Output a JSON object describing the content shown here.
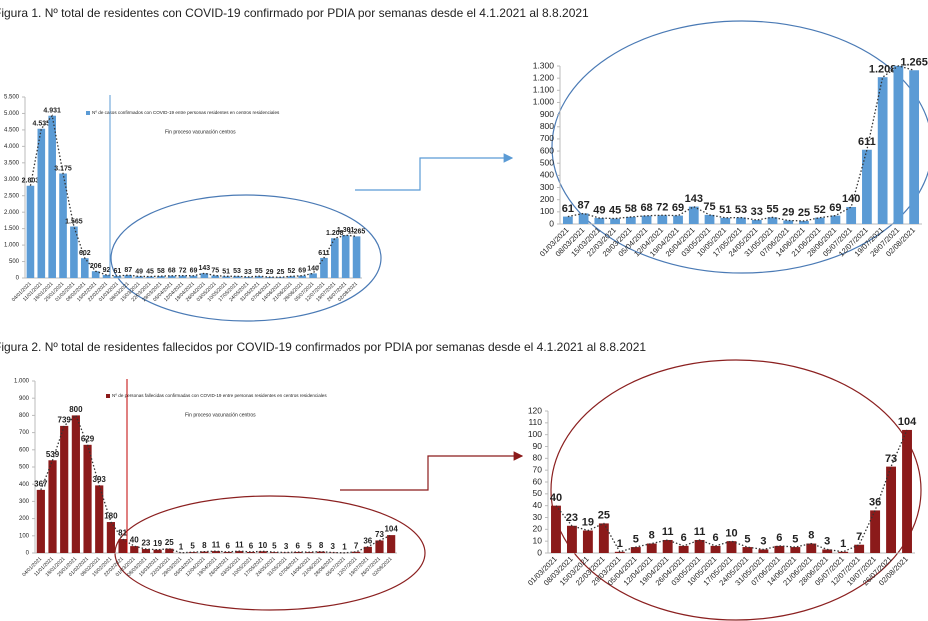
{
  "chart_data": [
    {
      "type": "bar",
      "title": "Figura 1. Nº total de residentes con COVID-19 confirmado por PDIA por semanas desde el 4.1.2021 al 8.8.2021",
      "annotation": "Fin proceso vacunación centros",
      "categories": [
        "04/01/2021",
        "11/01/2021",
        "18/01/2021",
        "25/01/2021",
        "01/02/2021",
        "08/02/2021",
        "15/02/2021",
        "22/02/2021",
        "01/03/2021",
        "08/03/2021",
        "15/03/2021",
        "22/03/2021",
        "29/03/2021",
        "05/04/2021",
        "12/04/2021",
        "19/04/2021",
        "26/04/2021",
        "03/05/2021",
        "10/05/2021",
        "17/05/2021",
        "24/05/2021",
        "31/05/2021",
        "07/06/2021",
        "14/06/2021",
        "21/06/2021",
        "28/06/2021",
        "05/07/2021",
        "12/07/2021",
        "19/07/2021",
        "26/07/2021",
        "02/08/2021"
      ],
      "series": [
        {
          "name": "Nº de casos confirmados con COVID-19 entre personas residentes en centros residenciales",
          "color": "#5b9bd5",
          "values": [
            2803,
            4535,
            4931,
            3175,
            1565,
            602,
            206,
            92,
            61,
            87,
            49,
            45,
            58,
            68,
            72,
            69,
            143,
            75,
            51,
            53,
            33,
            55,
            29,
            25,
            52,
            69,
            140,
            611,
            1208,
            1301,
            1265
          ],
          "value_labels": [
            "2.803",
            "4.535",
            "4.931",
            "3.175",
            "1.565",
            "602",
            "206",
            "92",
            "61",
            "87",
            "49",
            "45",
            "58",
            "68",
            "72",
            "69",
            "143",
            "75",
            "51",
            "53",
            "33",
            "55",
            "29",
            "25",
            "52",
            "69",
            "140",
            "611",
            "1.208",
            "1.301",
            "1.265"
          ]
        }
      ],
      "ylim": [
        0,
        5500
      ],
      "yticks": [
        0,
        500,
        {
          "value": 1000,
          "label": "1.000"
        },
        {
          "value": 1500,
          "label": "1.500"
        },
        {
          "value": 2000,
          "label": "2.000"
        },
        {
          "value": 2500,
          "label": "2.500"
        },
        {
          "value": 3000,
          "label": "3.000"
        },
        {
          "value": 3500,
          "label": "3.500"
        },
        {
          "value": 4000,
          "label": "4.000"
        },
        {
          "value": 4500,
          "label": "4.500"
        },
        {
          "value": 5000,
          "label": "5.000"
        },
        {
          "value": 5500,
          "label": "5.500"
        }
      ]
    },
    {
      "type": "bar",
      "categories": [
        "01/03/2021",
        "08/03/2021",
        "15/03/2021",
        "22/03/2021",
        "29/03/2021",
        "05/04/2021",
        "12/04/2021",
        "19/04/2021",
        "26/04/2021",
        "03/05/2021",
        "10/05/2021",
        "17/05/2021",
        "24/05/2021",
        "31/05/2021",
        "07/06/2021",
        "14/06/2021",
        "21/06/2021",
        "28/06/2021",
        "05/07/2021",
        "12/07/2021",
        "19/07/2021",
        "26/07/2021",
        "02/08/2021"
      ],
      "series": [
        {
          "color": "#5b9bd5",
          "values": [
            61,
            87,
            49,
            45,
            58,
            68,
            72,
            69,
            143,
            75,
            51,
            53,
            33,
            55,
            29,
            25,
            52,
            69,
            140,
            611,
            1208,
            1301,
            1265
          ],
          "value_labels": [
            "61",
            "87",
            "49",
            "45",
            "58",
            "68",
            "72",
            "69",
            "143",
            "75",
            "51",
            "53",
            "33",
            "55",
            "29",
            "25",
            "52",
            "69",
            "140",
            "611",
            "1.208",
            null,
            "1.265"
          ]
        }
      ],
      "ylim": [
        0,
        1300
      ],
      "yticks": [
        0,
        100,
        200,
        300,
        400,
        500,
        600,
        700,
        800,
        900,
        {
          "value": 1000,
          "label": "1.000"
        },
        {
          "value": 1100,
          "label": "1.100"
        },
        {
          "value": 1200,
          "label": "1.200"
        },
        {
          "value": 1300,
          "label": "1.300"
        }
      ]
    },
    {
      "type": "bar",
      "title": "Figura 2. Nº total de residentes fallecidos por COVID-19 confirmados por PDIA por semanas desde el 4.1.2021 al 8.8.2021",
      "annotation": "Fin proceso vacunación centros",
      "categories": [
        "04/01/2021",
        "11/01/2021",
        "18/01/2021",
        "25/01/2021",
        "01/02/2021",
        "08/02/2021",
        "15/02/2021",
        "22/02/2021",
        "01/03/2021",
        "08/03/2021",
        "15/03/2021",
        "22/03/2021",
        "29/03/2021",
        "05/04/2021",
        "12/04/2021",
        "19/04/2021",
        "26/04/2021",
        "03/05/2021",
        "10/05/2021",
        "17/05/2021",
        "24/05/2021",
        "31/05/2021",
        "07/06/2021",
        "14/06/2021",
        "21/06/2021",
        "28/06/2021",
        "05/07/2021",
        "12/07/2021",
        "19/07/2021",
        "26/07/2021",
        "02/08/2021"
      ],
      "series": [
        {
          "name": "Nº de personas fallecidas confirmadas con COVID-19 entre personas residentes en centros residenciales",
          "color": "#8b1a1a",
          "values": [
            367,
            539,
            739,
            800,
            629,
            393,
            180,
            81,
            40,
            23,
            19,
            25,
            1,
            5,
            8,
            11,
            6,
            11,
            6,
            10,
            5,
            3,
            6,
            5,
            8,
            3,
            1,
            7,
            36,
            73,
            104
          ]
        }
      ],
      "ylim": [
        0,
        1000
      ],
      "yticks": [
        0,
        100,
        200,
        300,
        400,
        500,
        600,
        700,
        800,
        900,
        {
          "value": 1000,
          "label": "1.000"
        }
      ]
    },
    {
      "type": "bar",
      "categories": [
        "01/03/2021",
        "08/03/2021",
        "15/03/2021",
        "22/03/2021",
        "29/03/2021",
        "05/04/2021",
        "12/04/2021",
        "19/04/2021",
        "26/04/2021",
        "03/05/2021",
        "10/05/2021",
        "17/05/2021",
        "24/05/2021",
        "31/05/2021",
        "07/06/2021",
        "14/06/2021",
        "21/06/2021",
        "28/06/2021",
        "05/07/2021",
        "12/07/2021",
        "19/07/2021",
        "26/07/2021",
        "02/08/2021"
      ],
      "series": [
        {
          "color": "#8b1a1a",
          "values": [
            40,
            23,
            19,
            25,
            1,
            5,
            8,
            11,
            6,
            11,
            6,
            10,
            5,
            3,
            6,
            5,
            8,
            3,
            1,
            7,
            36,
            73,
            104
          ]
        }
      ],
      "ylim": [
        0,
        120
      ],
      "yticks": [
        0,
        10,
        20,
        30,
        40,
        50,
        60,
        70,
        80,
        90,
        100,
        110,
        120
      ]
    }
  ]
}
